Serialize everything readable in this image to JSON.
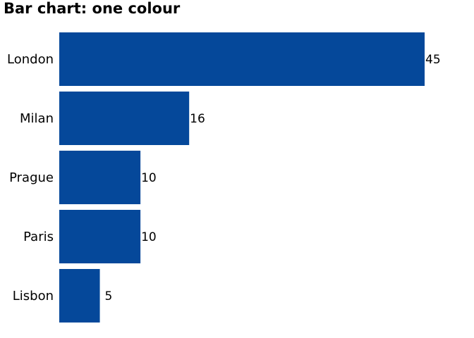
{
  "chart_data": {
    "type": "bar",
    "orientation": "horizontal",
    "title": "Bar chart: one colour",
    "xlabel": "",
    "ylabel": "",
    "categories": [
      "London",
      "Milan",
      "Prague",
      "Paris",
      "Lisbon"
    ],
    "values": [
      45,
      16,
      10,
      10,
      5
    ],
    "xlim": [
      0,
      45
    ],
    "bar_color": "#05489A",
    "data_labels": true,
    "grid": false,
    "legend": "none"
  }
}
